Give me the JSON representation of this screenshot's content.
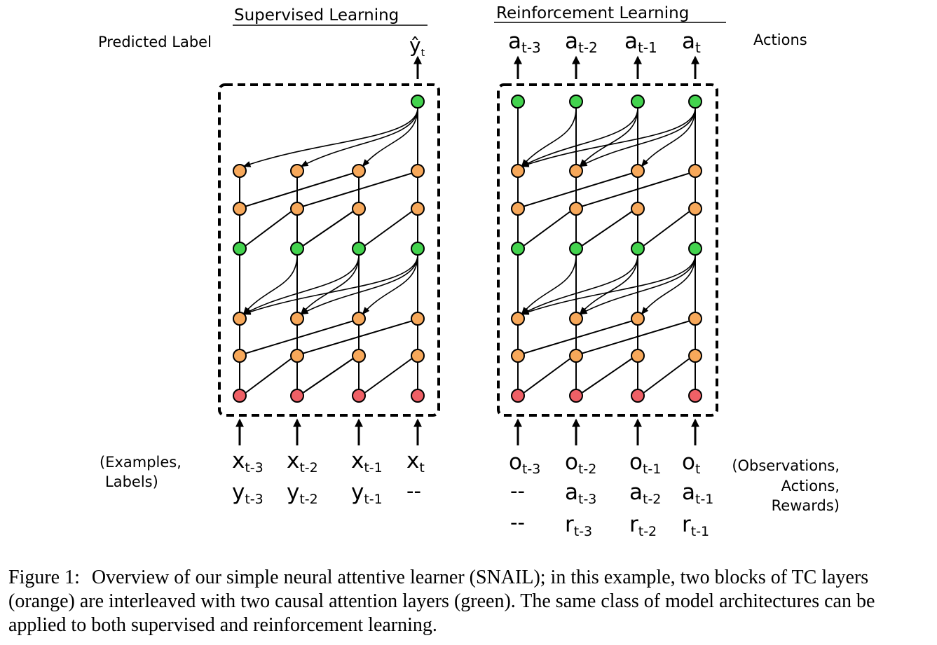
{
  "colors": {
    "green": "#43d34e",
    "orange": "#f7a85a",
    "red": "#ef6066",
    "stroke": "#000000",
    "background": "#ffffff"
  },
  "supervised": {
    "title": "Supervised Learning",
    "output_label": "Predicted Label",
    "output_symbol": "ŷ",
    "output_sub": "t",
    "input_label": [
      "(Examples,",
      "Labels)"
    ],
    "inputs_x": [
      {
        "base": "x",
        "sub": "t-3"
      },
      {
        "base": "x",
        "sub": "t-2"
      },
      {
        "base": "x",
        "sub": "t-1"
      },
      {
        "base": "x",
        "sub": "t"
      }
    ],
    "inputs_y": [
      {
        "base": "y",
        "sub": "t-3"
      },
      {
        "base": "y",
        "sub": "t-2"
      },
      {
        "base": "y",
        "sub": "t-1"
      },
      {
        "base": "--",
        "sub": ""
      }
    ]
  },
  "reinforcement": {
    "title": "Reinforcement Learning",
    "output_label": "Actions",
    "outputs": [
      {
        "base": "a",
        "sub": "t-3"
      },
      {
        "base": "a",
        "sub": "t-2"
      },
      {
        "base": "a",
        "sub": "t-1"
      },
      {
        "base": "a",
        "sub": "t"
      }
    ],
    "input_label": [
      "(Observations,",
      "Actions,",
      "Rewards)"
    ],
    "inputs_o": [
      {
        "base": "o",
        "sub": "t-3"
      },
      {
        "base": "o",
        "sub": "t-2"
      },
      {
        "base": "o",
        "sub": "t-1"
      },
      {
        "base": "o",
        "sub": "t"
      }
    ],
    "inputs_a": [
      {
        "base": "--",
        "sub": ""
      },
      {
        "base": "a",
        "sub": "t-3"
      },
      {
        "base": "a",
        "sub": "t-2"
      },
      {
        "base": "a",
        "sub": "t-1"
      }
    ],
    "inputs_r": [
      {
        "base": "--",
        "sub": ""
      },
      {
        "base": "r",
        "sub": "t-3"
      },
      {
        "base": "r",
        "sub": "t-2"
      },
      {
        "base": "r",
        "sub": "t-1"
      }
    ]
  },
  "network": {
    "rows_bottom_to_top": [
      "red",
      "orange",
      "orange",
      "green",
      "orange",
      "orange",
      "green"
    ],
    "rl_top_row_per_column": true
  },
  "caption": {
    "label": "Figure 1:",
    "text": "Overview of our simple neural attentive learner (SNAIL); in this example, two blocks of TC layers (orange) are interleaved with two causal attention layers (green). The same class of model architectures can be applied to both supervised and reinforcement learning."
  }
}
